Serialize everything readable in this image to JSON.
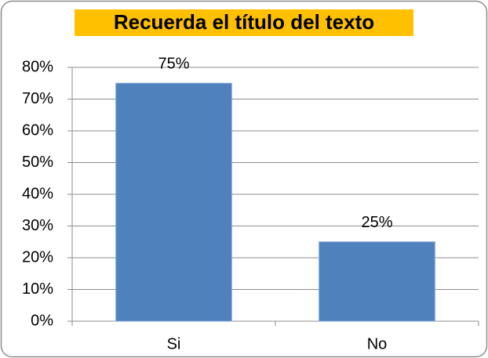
{
  "chart_data": {
    "type": "bar",
    "title": "Recuerda el título del texto",
    "categories": [
      "Si",
      "No"
    ],
    "values": [
      75,
      25
    ],
    "value_labels": [
      "75%",
      "25%"
    ],
    "color": "#4f81bd",
    "title_background": "#ffc000",
    "ylim": [
      0,
      80
    ],
    "yticks": [
      {
        "value": 0,
        "label": "0%"
      },
      {
        "value": 10,
        "label": "10%"
      },
      {
        "value": 20,
        "label": "20%"
      },
      {
        "value": 30,
        "label": "30%"
      },
      {
        "value": 40,
        "label": "40%"
      },
      {
        "value": 50,
        "label": "50%"
      },
      {
        "value": 60,
        "label": "60%"
      },
      {
        "value": 70,
        "label": "70%"
      },
      {
        "value": 80,
        "label": "80%"
      }
    ],
    "grid": true
  }
}
